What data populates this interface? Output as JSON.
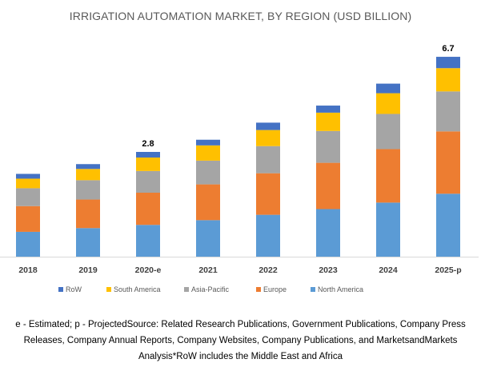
{
  "chart_data": {
    "type": "bar",
    "stacked": true,
    "title": "IRRIGATION AUTOMATION MARKET, BY REGION (USD BILLION)",
    "xlabel": "",
    "ylabel": "",
    "categories": [
      "2018",
      "2019",
      "2020-e",
      "2021",
      "2022",
      "2023",
      "2024",
      "2025-p"
    ],
    "series": [
      {
        "name": "North America",
        "color": "#5B9BD5",
        "values": [
          0.57,
          0.71,
          0.85,
          1.03,
          1.25,
          1.48,
          1.75,
          2.11
        ]
      },
      {
        "name": "Europe",
        "color": "#ED7D31",
        "values": [
          0.59,
          0.71,
          0.86,
          1.01,
          1.24,
          1.44,
          1.73,
          2.09
        ]
      },
      {
        "name": "Asia-Pacific",
        "color": "#A5A5A5",
        "values": [
          0.41,
          0.48,
          0.58,
          0.67,
          0.81,
          0.99,
          1.14,
          1.34
        ]
      },
      {
        "name": "South America",
        "color": "#FFC000",
        "values": [
          0.22,
          0.28,
          0.36,
          0.43,
          0.48,
          0.57,
          0.67,
          0.78
        ]
      },
      {
        "name": "RoW",
        "color": "#4472C4",
        "values": [
          0.11,
          0.12,
          0.15,
          0.16,
          0.22,
          0.22,
          0.31,
          0.38
        ]
      }
    ],
    "totals": [
      1.9,
      2.3,
      2.8,
      3.3,
      4.0,
      4.7,
      5.6,
      6.7
    ],
    "data_labels": [
      {
        "category": "2020-e",
        "text": "2.8"
      },
      {
        "category": "2025-p",
        "text": "6.7"
      }
    ],
    "legend": {
      "position": "bottom",
      "order": [
        "RoW",
        "South America",
        "Asia-Pacific",
        "Europe",
        "North America"
      ]
    },
    "grid": false,
    "y_axis_visible": false
  },
  "footnote": {
    "lines": [
      "e - Estimated;  p - ProjectedSource: Related Research Publications, Government Publications, Company Press",
      "Releases, Company  Annual Reports, Company  Websites, Company Publications,  and MarketsandMarkets",
      "Analysis*RoW includes the Middle East and Africa"
    ]
  }
}
